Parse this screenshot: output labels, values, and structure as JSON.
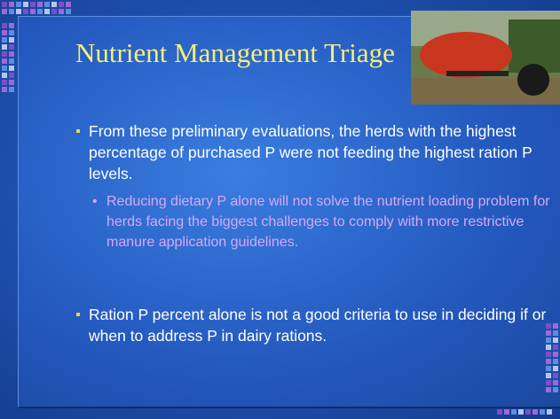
{
  "title": "Nutrient Management Triage",
  "bullets": [
    {
      "text": "From these preliminary evaluations, the herds with the highest percentage of purchased P were not feeding the highest ration P levels.",
      "sub": [
        "Reducing dietary P alone will not solve the nutrient loading problem for herds facing the biggest challenges to comply with more restrictive manure application guidelines."
      ]
    },
    {
      "text": "Ration P percent alone is not a good criteria to use in deciding if or when to address P in dairy rations.",
      "sub": []
    }
  ]
}
